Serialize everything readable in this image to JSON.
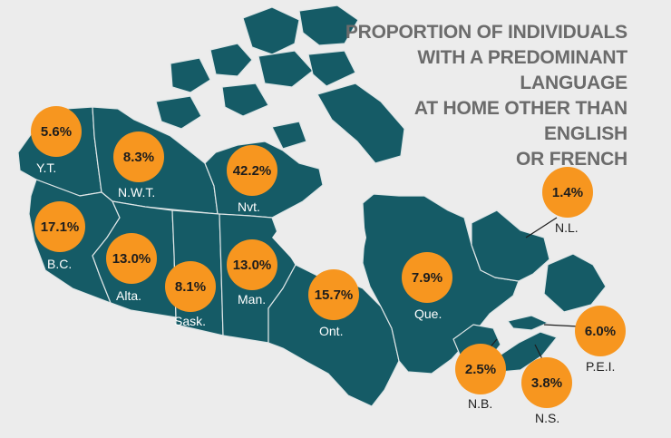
{
  "title_lines": [
    "PROPORTION OF INDIVIDUALS",
    "WITH A PREDOMINANT LANGUAGE",
    "AT HOME OTHER THAN ENGLISH",
    "OR FRENCH"
  ],
  "colors": {
    "background": "#ececec",
    "land": "#155b66",
    "border": "#dfe6e7",
    "badge": "#f7961f",
    "title": "#6b6b6b"
  },
  "regions": [
    {
      "abbr": "Y.T.",
      "value": "5.6%"
    },
    {
      "abbr": "N.W.T.",
      "value": "8.3%"
    },
    {
      "abbr": "Nvt.",
      "value": "42.2%"
    },
    {
      "abbr": "B.C.",
      "value": "17.1%"
    },
    {
      "abbr": "Alta.",
      "value": "13.0%"
    },
    {
      "abbr": "Sask.",
      "value": "8.1%"
    },
    {
      "abbr": "Man.",
      "value": "13.0%"
    },
    {
      "abbr": "Ont.",
      "value": "15.7%"
    },
    {
      "abbr": "Que.",
      "value": "7.9%"
    },
    {
      "abbr": "N.L.",
      "value": "1.4%"
    },
    {
      "abbr": "N.B.",
      "value": "2.5%"
    },
    {
      "abbr": "N.S.",
      "value": "3.8%"
    },
    {
      "abbr": "P.E.I.",
      "value": "6.0%"
    }
  ]
}
